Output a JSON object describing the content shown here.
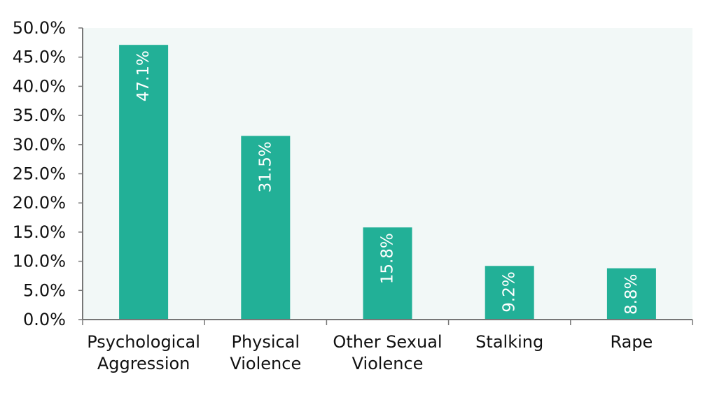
{
  "chart_data": {
    "type": "bar",
    "categories": [
      [
        "Psychological",
        "Aggression"
      ],
      [
        "Physical",
        "Violence"
      ],
      [
        "Other Sexual",
        "Violence"
      ],
      [
        "Stalking"
      ],
      [
        "Rape"
      ]
    ],
    "values": [
      47.1,
      31.5,
      15.8,
      9.2,
      8.8
    ],
    "data_labels": [
      "47.1%",
      "31.5%",
      "15.8%",
      "9.2%",
      "8.8%"
    ],
    "yticks": [
      "0.0%",
      "5.0%",
      "10.0%",
      "15.0%",
      "20.0%",
      "25.0%",
      "30.0%",
      "35.0%",
      "40.0%",
      "45.0%",
      "50.0%"
    ],
    "ylim": [
      0,
      50
    ],
    "grid": false,
    "title": "",
    "xlabel": "",
    "ylabel": "",
    "colors": {
      "bar": "#22b097",
      "plot_background": "#f2f8f7",
      "axis": "#777777",
      "data_label": "#ffffff"
    }
  }
}
